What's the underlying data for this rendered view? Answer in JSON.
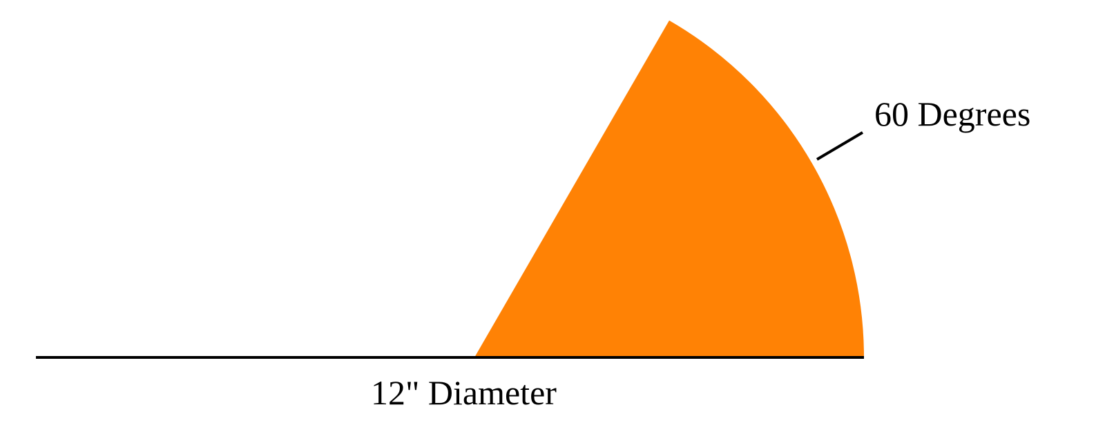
{
  "diagram": {
    "sector_angle_label": "60 Degrees",
    "diameter_label": "12\" Diameter",
    "sector_angle_degrees": 60,
    "sector_color": "#FF8205",
    "line_color": "#000000"
  }
}
